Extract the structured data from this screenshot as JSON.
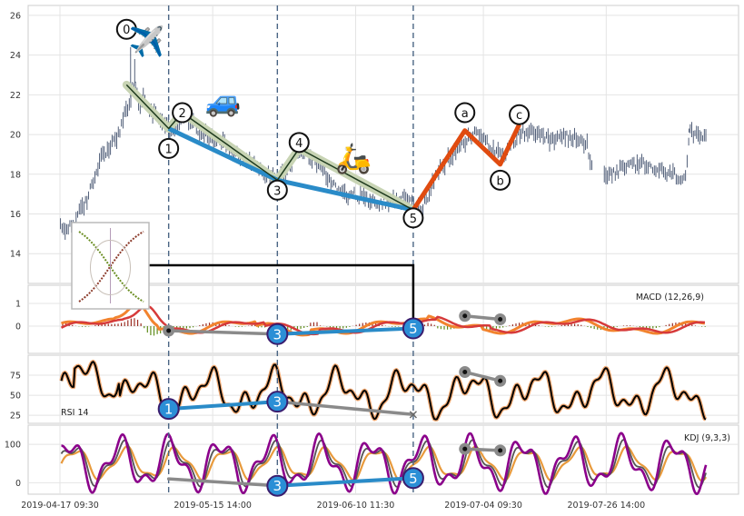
{
  "chart_data": {
    "type": "line",
    "x_ticks": [
      "2019-04-17 09:30",
      "2019-05-15 14:00",
      "2019-06-10 11:30",
      "2019-07-04 09:30",
      "2019-07-26 14:00"
    ],
    "price": {
      "ylim": [
        12.5,
        26.5
      ],
      "yticks": [
        14,
        16,
        18,
        20,
        22,
        24,
        26
      ],
      "anchors": [
        [
          0.0,
          15.3
        ],
        [
          0.15,
          15.2
        ],
        [
          0.4,
          15.4
        ],
        [
          0.6,
          15.8
        ],
        [
          0.9,
          16.4
        ],
        [
          1.2,
          17.5
        ],
        [
          1.5,
          18.9
        ],
        [
          1.8,
          19.4
        ],
        [
          2.0,
          19.6
        ],
        [
          2.3,
          20.6
        ],
        [
          2.55,
          21.6
        ],
        [
          2.75,
          22.6
        ],
        [
          2.9,
          21.3
        ],
        [
          3.1,
          21.9
        ],
        [
          3.3,
          21.2
        ],
        [
          3.5,
          21.0
        ],
        [
          3.75,
          20.7
        ],
        [
          4.0,
          20.3
        ],
        [
          4.3,
          20.5
        ],
        [
          4.6,
          21.0
        ],
        [
          4.9,
          20.5
        ],
        [
          5.2,
          20.1
        ],
        [
          5.6,
          19.8
        ],
        [
          6.0,
          19.6
        ],
        [
          6.4,
          19.2
        ],
        [
          6.8,
          18.8
        ],
        [
          7.2,
          18.4
        ],
        [
          7.6,
          18.0
        ],
        [
          8.0,
          17.8
        ],
        [
          8.4,
          18.4
        ],
        [
          8.7,
          19.0
        ],
        [
          9.0,
          19.2
        ],
        [
          9.4,
          18.6
        ],
        [
          9.8,
          17.9
        ],
        [
          10.2,
          17.3
        ],
        [
          10.6,
          17.0
        ],
        [
          11.0,
          16.9
        ],
        [
          11.4,
          16.7
        ],
        [
          11.8,
          16.6
        ],
        [
          12.2,
          16.6
        ],
        [
          12.6,
          16.8
        ],
        [
          13.0,
          16.5
        ],
        [
          13.3,
          16.2
        ],
        [
          13.6,
          17.1
        ],
        [
          13.9,
          18.0
        ],
        [
          14.2,
          18.6
        ],
        [
          14.6,
          19.2
        ],
        [
          14.9,
          19.6
        ],
        [
          15.2,
          20.1
        ],
        [
          15.5,
          19.9
        ],
        [
          15.8,
          19.5
        ],
        [
          16.1,
          19.0
        ],
        [
          16.3,
          18.8
        ],
        [
          16.6,
          19.4
        ],
        [
          16.9,
          20.1
        ],
        [
          17.2,
          20.1
        ],
        [
          17.6,
          19.9
        ],
        [
          18.0,
          19.7
        ],
        [
          18.4,
          19.8
        ],
        [
          18.8,
          19.9
        ],
        [
          19.2,
          19.6
        ],
        [
          19.4,
          19.5
        ],
        [
          19.6,
          18.3
        ],
        [
          20.0,
          18.0
        ],
        [
          20.4,
          18.1
        ],
        [
          20.8,
          18.3
        ],
        [
          21.2,
          18.5
        ],
        [
          21.6,
          18.4
        ],
        [
          22.0,
          18.2
        ],
        [
          22.4,
          18.0
        ],
        [
          22.8,
          17.9
        ],
        [
          23.0,
          17.8
        ],
        [
          23.1,
          18.8
        ],
        [
          23.15,
          20.1
        ],
        [
          23.5,
          19.8
        ],
        [
          23.8,
          19.7
        ]
      ],
      "gap": [
        19.6,
        20.0
      ],
      "spikes": [
        [
          2.6,
          24.4
        ],
        [
          2.75,
          23.8
        ],
        [
          23.15,
          20.3
        ]
      ]
    },
    "macd": {
      "label": "MACD (12,26,9)",
      "ylim": [
        -1.2,
        1.8
      ],
      "yticks": [
        0,
        1
      ],
      "hist_color_pos": "#9b2d23",
      "hist_color_neg": "#5e8c1a"
    },
    "rsi": {
      "label": "RSI 14",
      "ylim": [
        15,
        100
      ],
      "yticks": [
        25,
        50,
        75
      ]
    },
    "kdj": {
      "label": "KDJ (9,3,3)",
      "ylim": [
        -30,
        150
      ],
      "yticks": [
        0,
        100
      ]
    },
    "waves": {
      "impulse_points": [
        [
          2.45,
          22.5
        ],
        [
          4.0,
          20.3
        ],
        [
          4.5,
          21.1
        ],
        [
          8.0,
          17.7
        ],
        [
          8.8,
          19.3
        ],
        [
          13.0,
          16.2
        ]
      ],
      "impulse_labels": [
        {
          "text": "0",
          "x": 2.45,
          "y": 25.3
        },
        {
          "text": "1",
          "x": 4.0,
          "y": 19.3
        },
        {
          "text": "2",
          "x": 4.5,
          "y": 21.1
        },
        {
          "text": "3",
          "x": 8.0,
          "y": 17.2
        },
        {
          "text": "4",
          "x": 8.8,
          "y": 19.6
        },
        {
          "text": "5",
          "x": 13.0,
          "y": 15.8
        }
      ],
      "trend_line": [
        [
          4.0,
          20.3
        ],
        [
          8.0,
          17.7
        ],
        [
          13.0,
          16.2
        ]
      ],
      "corrective_points": [
        [
          13.0,
          16.2
        ],
        [
          14.9,
          20.2
        ],
        [
          16.2,
          18.5
        ],
        [
          16.9,
          20.5
        ]
      ],
      "corrective_labels": [
        {
          "text": "a",
          "x": 14.9,
          "y": 21.1
        },
        {
          "text": "b",
          "x": 16.2,
          "y": 17.7
        },
        {
          "text": "c",
          "x": 16.9,
          "y": 21.0
        }
      ],
      "divergence_markers": {
        "macd": [
          {
            "text": "3",
            "x": 8.0
          },
          {
            "text": "5",
            "x": 13.0
          }
        ],
        "rsi": [
          {
            "text": "1",
            "x": 4.0
          },
          {
            "text": "3",
            "x": 8.0
          }
        ],
        "kdj": [
          {
            "text": "3",
            "x": 8.0
          },
          {
            "text": "5",
            "x": 13.0
          }
        ]
      },
      "vlines": [
        4.0,
        8.0,
        13.0
      ],
      "icons": [
        {
          "name": "airplane",
          "glyph": "✈️",
          "x": 3.2,
          "y": 24.2
        },
        {
          "name": "car",
          "glyph": "🚙",
          "x": 6.0,
          "y": 21.2
        },
        {
          "name": "scooter",
          "glyph": "🛵",
          "x": 10.8,
          "y": 18.3
        }
      ]
    },
    "colors": {
      "candles": "#3f4e6b",
      "impulse": "#1e3a1e",
      "channel": "#c8d4b4",
      "trend": "#2a8bc8",
      "corrective": "#e04b10",
      "macd": "#f2832e",
      "macd_signal": "#d63a3a",
      "rsi": "#000000",
      "rsi_outline": "#f2aa73",
      "kdj_k": "#8b008b",
      "kdj_d": "#e89a3c",
      "kdj_j": "#555555",
      "divergence": "#8a8a8a",
      "marker_fill": "#2b8fd6",
      "vline": "#4a6584"
    }
  }
}
